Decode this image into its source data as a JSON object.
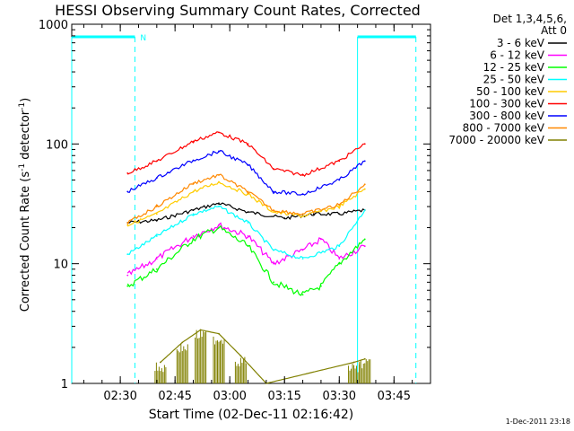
{
  "chart_data": {
    "type": "line",
    "title": "HESSI Observing Summary Count Rates, Corrected",
    "xlabel": "Start Time (02-Dec-11 02:16:42)",
    "ylabel_main": "Corrected Count Rate (s",
    "ylabel_sup1": "-1",
    "ylabel_mid": " detector",
    "ylabel_sup2": "-1",
    "ylabel_end": ")",
    "y_scale": "log",
    "ylim": [
      1,
      1000
    ],
    "xlim": [
      "02:16:42",
      "03:55:00"
    ],
    "x_ticks": [
      "02:30",
      "02:45",
      "03:00",
      "03:15",
      "03:30",
      "03:45"
    ],
    "y_ticks": [
      "1",
      "10",
      "100",
      "1000"
    ],
    "legend_header": [
      "Det 1,3,4,5,6,",
      "Att 0"
    ],
    "legend_position": "right",
    "flag_label": "N",
    "footer": "1-Dec-2011 23:18",
    "night_intervals": [
      [
        "02:16:42",
        "02:34:00"
      ],
      [
        "03:35:00",
        "03:51:00"
      ]
    ],
    "series": [
      {
        "name": "3 - 6 keV",
        "color": "#000000",
        "x": [
          "02:32",
          "02:40",
          "02:50",
          "02:57",
          "03:05",
          "03:15",
          "03:23",
          "03:30",
          "03:37"
        ],
        "y": [
          22,
          23,
          28,
          32,
          27,
          24,
          26,
          26,
          28
        ]
      },
      {
        "name": "6 - 12 keV",
        "color": "#ff00ff",
        "x": [
          "02:32",
          "02:40",
          "02:50",
          "02:57",
          "03:05",
          "03:12",
          "03:20",
          "03:25",
          "03:30",
          "03:37"
        ],
        "y": [
          8,
          11,
          17,
          21,
          17,
          10,
          13,
          16,
          11,
          14
        ]
      },
      {
        "name": "12 - 25 keV",
        "color": "#00ff00",
        "x": [
          "02:32",
          "02:40",
          "02:50",
          "02:57",
          "03:05",
          "03:12",
          "03:20",
          "03:25",
          "03:30",
          "03:37"
        ],
        "y": [
          6.5,
          9,
          16,
          20,
          14,
          7,
          5.5,
          6.5,
          10,
          16
        ]
      },
      {
        "name": "25 - 50 keV",
        "color": "#00ffff",
        "x": [
          "02:32",
          "02:40",
          "02:50",
          "02:57",
          "03:05",
          "03:12",
          "03:20",
          "03:30",
          "03:37"
        ],
        "y": [
          12,
          17,
          26,
          30,
          22,
          13,
          11,
          14,
          28
        ]
      },
      {
        "name": "50 - 100 keV",
        "color": "#ffcc00",
        "x": [
          "02:32",
          "02:40",
          "02:50",
          "02:57",
          "03:05",
          "03:12",
          "03:20",
          "03:30",
          "03:37"
        ],
        "y": [
          21,
          26,
          40,
          48,
          38,
          27,
          25,
          30,
          42
        ]
      },
      {
        "name": "100 - 300 keV",
        "color": "#ff0000",
        "x": [
          "02:32",
          "02:40",
          "02:50",
          "02:57",
          "03:05",
          "03:12",
          "03:20",
          "03:30",
          "03:37"
        ],
        "y": [
          57,
          72,
          105,
          125,
          100,
          62,
          55,
          72,
          100
        ]
      },
      {
        "name": "300 - 800 keV",
        "color": "#0000ff",
        "x": [
          "02:32",
          "02:40",
          "02:50",
          "02:57",
          "03:05",
          "03:12",
          "03:20",
          "03:30",
          "03:37"
        ],
        "y": [
          40,
          52,
          73,
          87,
          67,
          40,
          38,
          50,
          72
        ]
      },
      {
        "name": "800 - 7000 keV",
        "color": "#ff8800",
        "x": [
          "02:32",
          "02:40",
          "02:50",
          "02:57",
          "03:05",
          "03:12",
          "03:20",
          "03:30",
          "03:37"
        ],
        "y": [
          22,
          30,
          47,
          55,
          40,
          28,
          26,
          31,
          46
        ]
      },
      {
        "name": "7000 - 20000 keV",
        "color": "#808000",
        "x": [
          "02:41",
          "02:47",
          "02:52",
          "02:57",
          "03:03",
          "03:10",
          "03:34",
          "03:37"
        ],
        "y": [
          1.5,
          2.2,
          2.8,
          2.6,
          1.7,
          1.0,
          1.5,
          1.6
        ]
      }
    ]
  }
}
